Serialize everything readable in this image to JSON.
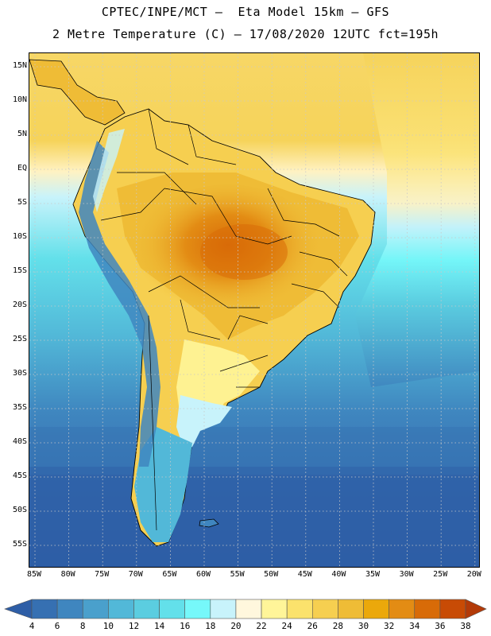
{
  "title_line1": "CPTEC/INPE/MCT –  Eta Model 15km – GFS",
  "title_line2": "2 Metre Temperature (C) – 17/08/2020 12UTC fct=195h",
  "map": {
    "region": "South America",
    "variable": "2 Metre Temperature",
    "units": "C",
    "lat_labels": [
      "15N",
      "10N",
      "5N",
      "EQ",
      "5S",
      "10S",
      "15S",
      "20S",
      "25S",
      "30S",
      "35S",
      "40S",
      "45S",
      "50S",
      "55S"
    ],
    "lon_labels": [
      "85W",
      "80W",
      "75W",
      "70W",
      "65W",
      "60W",
      "55W",
      "50W",
      "45W",
      "40W",
      "35W",
      "30W",
      "25W",
      "20W"
    ]
  },
  "legend": {
    "labels": [
      "4",
      "6",
      "8",
      "10",
      "12",
      "14",
      "16",
      "18",
      "20",
      "22",
      "24",
      "26",
      "28",
      "30",
      "32",
      "34",
      "36",
      "38"
    ],
    "colors": [
      "#2e5ea6",
      "#3670b2",
      "#3f86bf",
      "#4aa0cc",
      "#52b8d8",
      "#5bcde0",
      "#63e0ea",
      "#76f8fa",
      "#c8f3fb",
      "#fff7dd",
      "#fff599",
      "#fbe26c",
      "#f6cf50",
      "#efbc36",
      "#eba80b",
      "#e38c14",
      "#d86b08",
      "#c84b05",
      "#b33a08"
    ]
  }
}
